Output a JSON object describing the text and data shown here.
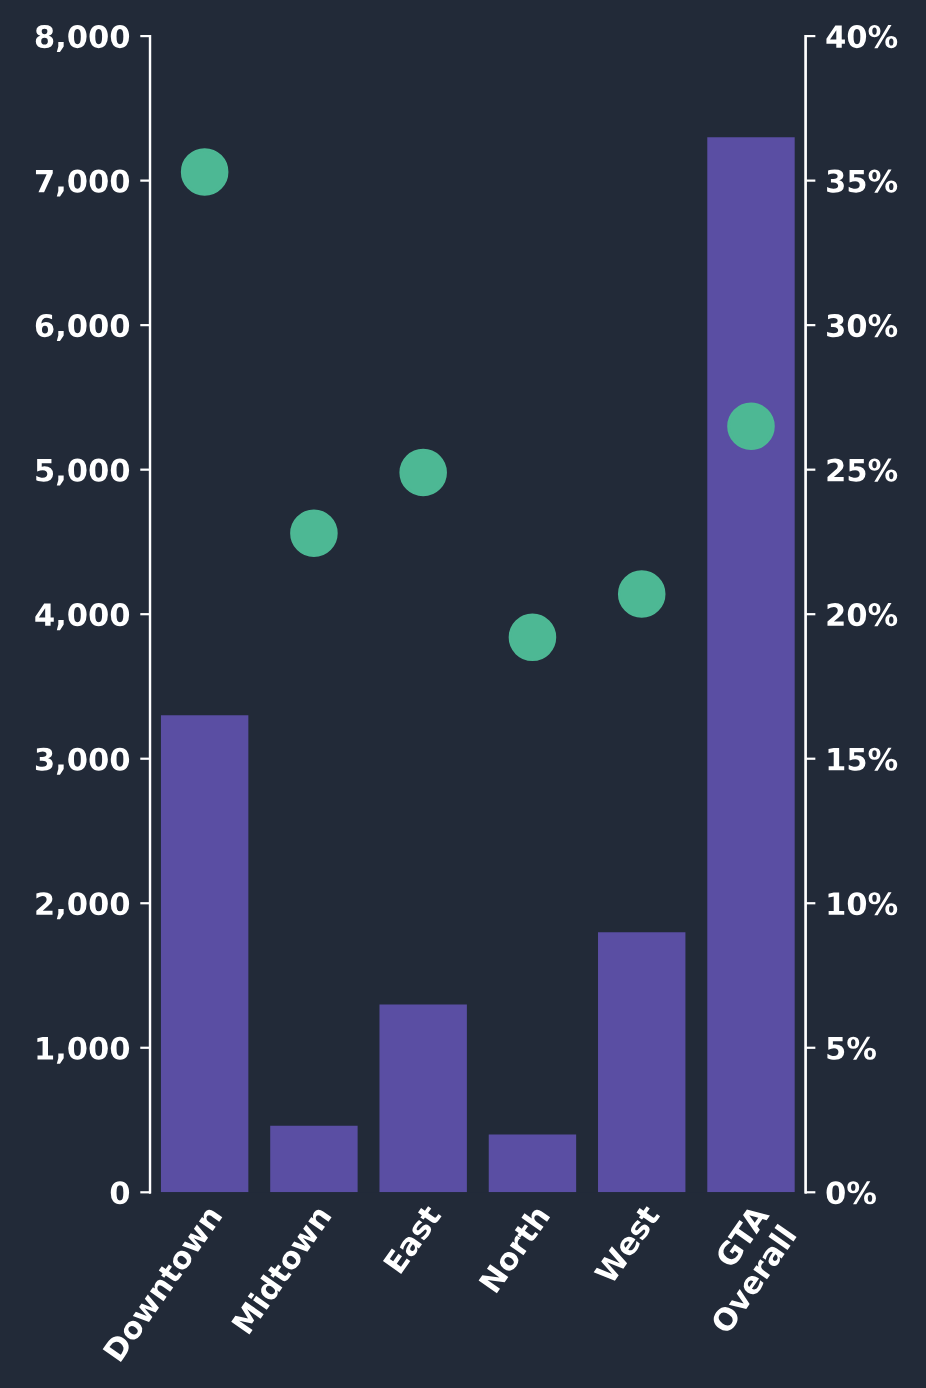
{
  "chart_data": {
    "type": "bar",
    "categories": [
      "Downtown",
      "Midtown",
      "East",
      "North",
      "West",
      "GTA\nOverall"
    ],
    "series": [
      {
        "color": "#5a4ea3",
        "values": [
          3300,
          460,
          1300,
          400,
          1800,
          7300
        ]
      },
      {
        "type": "scatter",
        "axis": "y2",
        "color": "#4db894",
        "values": [
          35.3,
          22.8,
          24.9,
          19.2,
          20.7,
          26.5
        ]
      }
    ],
    "ylim": [
      0,
      8000
    ],
    "yticks": [
      {
        "value": 0,
        "label": "0"
      },
      {
        "value": 1000,
        "label": "1,000"
      },
      {
        "value": 2000,
        "label": "2,000"
      },
      {
        "value": 3000,
        "label": "3,000"
      },
      {
        "value": 4000,
        "label": "4,000"
      },
      {
        "value": 5000,
        "label": "5,000"
      },
      {
        "value": 6000,
        "label": "6,000"
      },
      {
        "value": 7000,
        "label": "7,000"
      },
      {
        "value": 8000,
        "label": "8,000"
      }
    ],
    "y2lim": [
      0,
      40
    ],
    "y2ticks": [
      {
        "value": 0,
        "label": "0%"
      },
      {
        "value": 5,
        "label": "5%"
      },
      {
        "value": 10,
        "label": "10%"
      },
      {
        "value": 15,
        "label": "15%"
      },
      {
        "value": 20,
        "label": "20%"
      },
      {
        "value": 25,
        "label": "25%"
      },
      {
        "value": 30,
        "label": "30%"
      },
      {
        "value": 35,
        "label": "35%"
      },
      {
        "value": 40,
        "label": "40%"
      }
    ],
    "grid": false,
    "legend": false,
    "marker": "circle"
  }
}
